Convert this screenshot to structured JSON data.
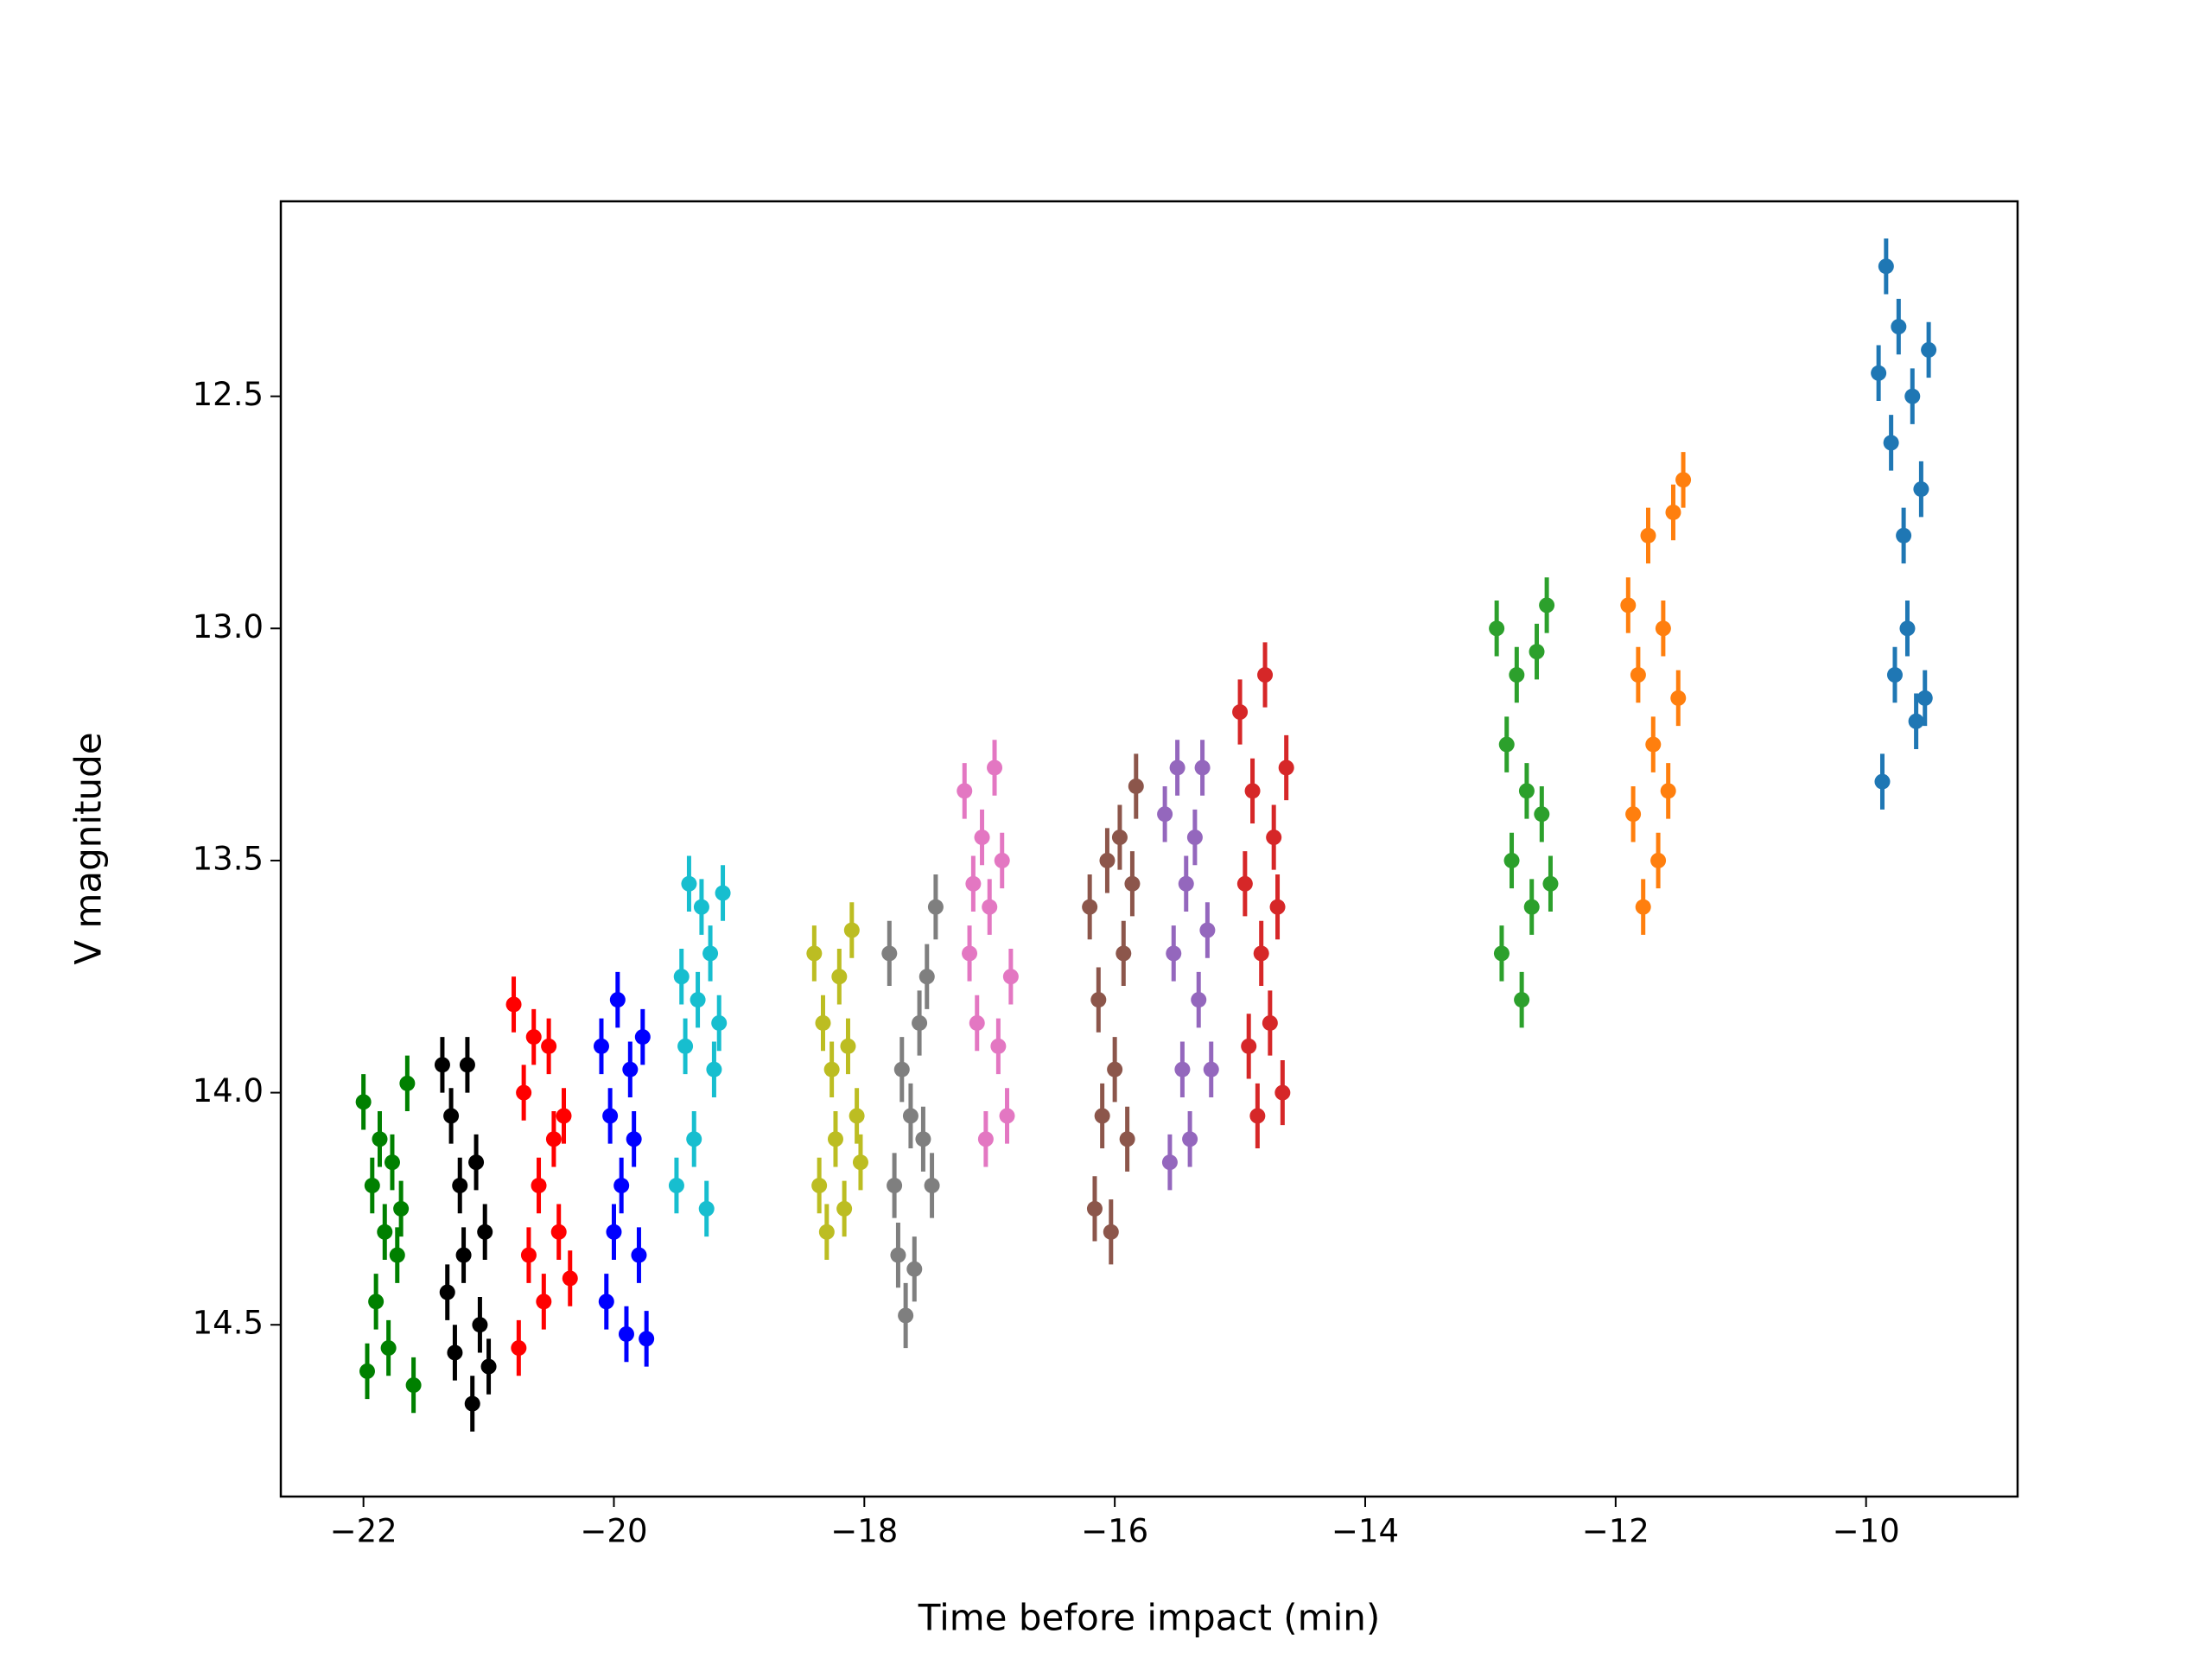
{
  "chart_data": {
    "type": "errorbar",
    "x_label": "Time before impact (min)",
    "y_label": "V magnitude",
    "xlim": [
      -22.66,
      -8.79
    ],
    "ylim": [
      14.87,
      12.08
    ],
    "xticks": [
      {
        "value": -22,
        "label": "−22"
      },
      {
        "value": -20,
        "label": "−20"
      },
      {
        "value": -18,
        "label": "−18"
      },
      {
        "value": -16,
        "label": "−16"
      },
      {
        "value": -14,
        "label": "−14"
      },
      {
        "value": -12,
        "label": "−12"
      },
      {
        "value": -10,
        "label": "−10"
      }
    ],
    "yticks": [
      12.5,
      {
        "value": 13,
        "label": "13.0"
      },
      13.5,
      {
        "value": 14,
        "label": "14.0"
      },
      14.5
    ],
    "series": [
      {
        "color": "#008000",
        "yerr": 0.06,
        "x": [
          -22.0,
          -21.97,
          -21.93,
          -21.9,
          -21.87,
          -21.83,
          -21.8,
          -21.77,
          -21.73,
          -21.7,
          -21.65,
          -21.6
        ],
        "values": [
          14.02,
          14.6,
          14.2,
          14.45,
          14.1,
          14.3,
          14.55,
          14.15,
          14.35,
          14.25,
          13.98,
          14.63
        ]
      },
      {
        "color": "#000000",
        "yerr": 0.06,
        "x": [
          -21.37,
          -21.33,
          -21.3,
          -21.27,
          -21.23,
          -21.2,
          -21.17,
          -21.13,
          -21.1,
          -21.07,
          -21.03,
          -21.0
        ],
        "values": [
          13.94,
          14.43,
          14.05,
          14.56,
          14.2,
          14.35,
          13.94,
          14.67,
          14.15,
          14.5,
          14.3,
          14.59
        ]
      },
      {
        "color": "#ff0000",
        "yerr": 0.06,
        "x": [
          -20.8,
          -20.76,
          -20.72,
          -20.68,
          -20.64,
          -20.6,
          -20.56,
          -20.52,
          -20.48,
          -20.44,
          -20.4,
          -20.35
        ],
        "values": [
          13.81,
          14.55,
          14.0,
          14.35,
          13.88,
          14.2,
          14.45,
          13.9,
          14.1,
          14.3,
          14.05,
          14.4
        ]
      },
      {
        "color": "#0000ff",
        "yerr": 0.06,
        "x": [
          -20.1,
          -20.06,
          -20.03,
          -20.0,
          -19.97,
          -19.94,
          -19.9,
          -19.87,
          -19.84,
          -19.8,
          -19.77,
          -19.74
        ],
        "values": [
          13.9,
          14.45,
          14.05,
          14.3,
          13.8,
          14.2,
          14.52,
          13.95,
          14.1,
          14.35,
          13.88,
          14.53
        ]
      },
      {
        "color": "#17becf",
        "yerr": 0.06,
        "x": [
          -19.5,
          -19.46,
          -19.43,
          -19.4,
          -19.36,
          -19.33,
          -19.3,
          -19.26,
          -19.23,
          -19.2,
          -19.16,
          -19.13
        ],
        "values": [
          14.2,
          13.75,
          13.9,
          13.55,
          14.1,
          13.8,
          13.6,
          14.25,
          13.7,
          13.95,
          13.85,
          13.57
        ]
      },
      {
        "color": "#bcbd22",
        "yerr": 0.06,
        "x": [
          -18.4,
          -18.36,
          -18.33,
          -18.3,
          -18.26,
          -18.23,
          -18.2,
          -18.16,
          -18.13,
          -18.1,
          -18.06,
          -18.03
        ],
        "values": [
          13.7,
          14.2,
          13.85,
          14.3,
          13.95,
          14.1,
          13.75,
          14.25,
          13.9,
          13.65,
          14.05,
          14.15
        ]
      },
      {
        "color": "#7f7f7f",
        "yerr": 0.07,
        "x": [
          -17.8,
          -17.76,
          -17.73,
          -17.7,
          -17.67,
          -17.63,
          -17.6,
          -17.56,
          -17.53,
          -17.5,
          -17.46,
          -17.43
        ],
        "values": [
          13.7,
          14.2,
          14.35,
          13.95,
          14.48,
          14.05,
          14.38,
          13.85,
          14.1,
          13.75,
          14.2,
          13.6
        ]
      },
      {
        "color": "#e377c2",
        "yerr": 0.06,
        "x": [
          -17.2,
          -17.16,
          -17.13,
          -17.1,
          -17.06,
          -17.03,
          -17.0,
          -16.96,
          -16.93,
          -16.9,
          -16.86,
          -16.83
        ],
        "values": [
          13.35,
          13.7,
          13.55,
          13.85,
          13.45,
          14.1,
          13.6,
          13.3,
          13.9,
          13.5,
          14.05,
          13.75
        ]
      },
      {
        "color": "#8c564b",
        "yerr": 0.07,
        "x": [
          -16.2,
          -16.16,
          -16.13,
          -16.1,
          -16.06,
          -16.03,
          -16.0,
          -15.96,
          -15.93,
          -15.9,
          -15.86,
          -15.83
        ],
        "values": [
          13.6,
          14.25,
          13.8,
          14.05,
          13.5,
          14.3,
          13.95,
          13.45,
          13.7,
          14.1,
          13.55,
          13.34
        ]
      },
      {
        "color": "#9467bd",
        "yerr": 0.06,
        "x": [
          -15.6,
          -15.56,
          -15.53,
          -15.5,
          -15.46,
          -15.43,
          -15.4,
          -15.36,
          -15.33,
          -15.3,
          -15.26,
          -15.23
        ],
        "values": [
          13.4,
          14.15,
          13.7,
          13.3,
          13.95,
          13.55,
          14.1,
          13.45,
          13.8,
          13.3,
          13.65,
          13.95
        ]
      },
      {
        "color": "#d62728",
        "yerr": 0.07,
        "x": [
          -15.0,
          -14.96,
          -14.93,
          -14.9,
          -14.86,
          -14.83,
          -14.8,
          -14.76,
          -14.73,
          -14.7,
          -14.66,
          -14.63
        ],
        "values": [
          13.18,
          13.55,
          13.9,
          13.35,
          14.05,
          13.7,
          13.1,
          13.85,
          13.45,
          13.6,
          14.0,
          13.3
        ]
      },
      {
        "color": "#2ca02c",
        "yerr": 0.06,
        "x": [
          -12.95,
          -12.91,
          -12.87,
          -12.83,
          -12.79,
          -12.75,
          -12.71,
          -12.67,
          -12.63,
          -12.59,
          -12.55,
          -12.52
        ],
        "values": [
          13.0,
          13.7,
          13.25,
          13.5,
          13.1,
          13.8,
          13.35,
          13.6,
          13.05,
          13.4,
          12.95,
          13.55
        ]
      },
      {
        "color": "#ff7f0e",
        "yerr": 0.06,
        "x": [
          -11.9,
          -11.86,
          -11.82,
          -11.78,
          -11.74,
          -11.7,
          -11.66,
          -11.62,
          -11.58,
          -11.54,
          -11.5,
          -11.46
        ],
        "values": [
          12.95,
          13.4,
          13.1,
          13.6,
          12.8,
          13.25,
          13.5,
          13.0,
          13.35,
          12.75,
          13.15,
          12.68
        ]
      },
      {
        "color": "#1f77b4",
        "yerr": 0.06,
        "x": [
          -9.9,
          -9.87,
          -9.84,
          -9.8,
          -9.77,
          -9.74,
          -9.7,
          -9.67,
          -9.63,
          -9.6,
          -9.56,
          -9.53,
          -9.5
        ],
        "values": [
          12.45,
          13.33,
          12.22,
          12.6,
          13.1,
          12.35,
          12.8,
          13.0,
          12.5,
          13.2,
          12.7,
          13.15,
          12.4
        ]
      }
    ]
  }
}
